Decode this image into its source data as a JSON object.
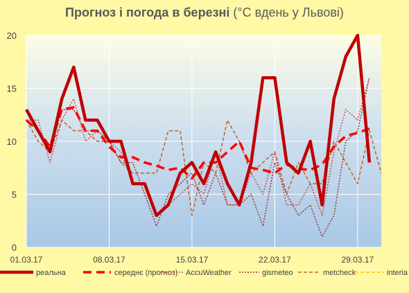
{
  "chart_data": {
    "type": "line",
    "title": "Прогноз і погода в березні",
    "subtitle": "(°C вдень у Львові)",
    "ylim": [
      0,
      20
    ],
    "yticks": [
      0,
      5,
      10,
      15,
      20
    ],
    "x_tick_labels": [
      "01.03.17",
      "08.03.17",
      "15.03.17",
      "22.03.17",
      "29.03.17"
    ],
    "x_tick_days": [
      1,
      8,
      15,
      22,
      29
    ],
    "x_days": [
      1,
      2,
      3,
      4,
      5,
      6,
      7,
      8,
      9,
      10,
      11,
      12,
      13,
      14,
      15,
      16,
      17,
      18,
      19,
      20,
      21,
      22,
      23,
      24,
      25,
      26,
      27,
      28,
      29,
      30,
      31
    ],
    "grid": true,
    "legend_position": "bottom",
    "series": [
      {
        "name": "реальна",
        "color": "#c00000",
        "style": "solid-thick",
        "values": [
          13,
          11,
          9,
          14,
          17,
          12,
          12,
          10,
          10,
          6,
          6,
          3,
          4,
          7,
          8,
          6,
          9,
          6,
          4,
          8,
          16,
          16,
          8,
          7,
          10,
          4,
          14,
          18,
          20,
          8,
          null
        ]
      },
      {
        "name": "середнє (прогноз)",
        "color": "#ff0000",
        "style": "dashed-thick",
        "values": [
          12,
          11,
          9.5,
          13,
          13.2,
          11,
          11,
          9.5,
          8.5,
          8.5,
          8,
          7.7,
          7.3,
          7.5,
          6.5,
          8,
          8,
          9,
          10,
          7.5,
          7.3,
          7,
          7.8,
          7.4,
          7.3,
          7.8,
          9.5,
          10.5,
          10.8,
          11.2,
          null
        ]
      },
      {
        "name": "AccuWeather",
        "color": "#c0504d",
        "style": "dotted",
        "values": [
          12,
          12,
          8,
          12,
          14,
          10,
          11,
          10,
          9,
          6,
          6,
          3,
          4,
          5,
          6,
          5,
          9,
          4,
          4,
          7,
          5,
          9,
          4,
          4,
          6,
          3,
          9,
          13,
          12,
          16,
          null
        ]
      },
      {
        "name": "gismeteo",
        "color": "#953735",
        "style": "dotted",
        "values": [
          12,
          11,
          9,
          13,
          13,
          11,
          11,
          10,
          8,
          8,
          5,
          2,
          5,
          6,
          7,
          4,
          7,
          4,
          4,
          5,
          2,
          8,
          5,
          3,
          4,
          1,
          3,
          10,
          11,
          16,
          null
        ]
      },
      {
        "name": "metcheck",
        "color": "#c0611d",
        "style": "dashed-thin",
        "values": [
          12,
          10,
          9,
          12,
          11,
          11,
          10,
          10,
          8,
          7,
          7,
          7,
          11,
          11,
          3,
          8,
          7,
          12,
          10,
          7,
          8,
          9,
          5,
          8,
          6,
          6,
          10,
          8,
          6,
          11,
          7
        ]
      },
      {
        "name": "interia",
        "color": "#ffc000",
        "style": "dashed-thin",
        "values": []
      }
    ]
  }
}
